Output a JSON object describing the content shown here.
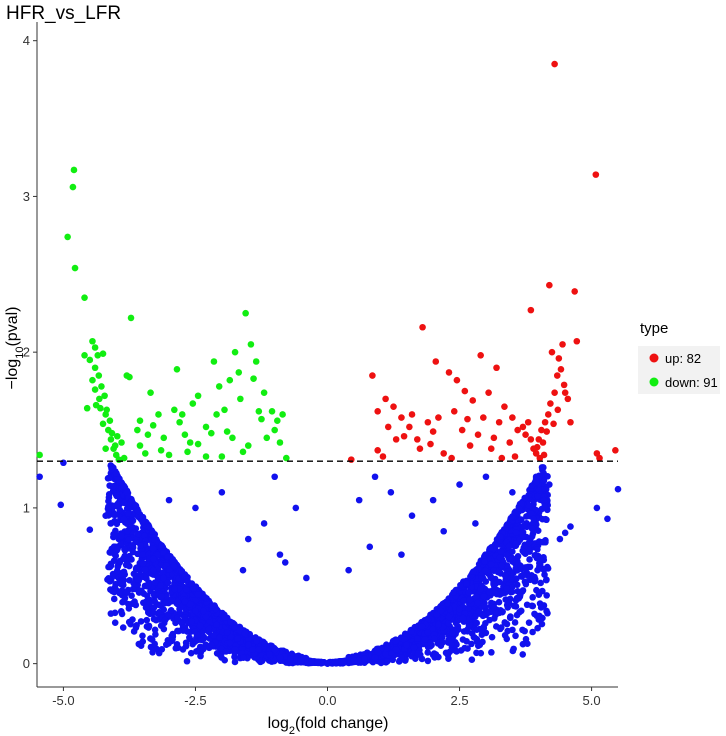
{
  "chart_data": {
    "type": "scatter",
    "title": "HFR_vs_LFR",
    "xlabel": "log2(fold change)",
    "ylabel": "-log10(pval)",
    "xlim": [
      -5.5,
      5.5
    ],
    "ylim": [
      -0.15,
      4.12
    ],
    "xticks": [
      -5.0,
      -2.5,
      0.0,
      2.5,
      5.0
    ],
    "xtick_labels": [
      "-5.0",
      "-2.5",
      "0.0",
      "2.5",
      "5.0"
    ],
    "yticks": [
      0,
      1,
      2,
      3,
      4
    ],
    "ytick_labels": [
      "0",
      "1",
      "2",
      "3",
      "4"
    ],
    "threshold_line": {
      "y": 1.3,
      "style": "dashed"
    },
    "grid": false,
    "legend": {
      "title": "type",
      "position": "right",
      "entries": [
        {
          "label": "up: 82",
          "color": "#ee1111"
        },
        {
          "label": "down: 91",
          "color": "#11ee11"
        }
      ]
    },
    "colors": {
      "up": "#ee1111",
      "down": "#11ee11",
      "ns": "#1111ee"
    },
    "series": [
      {
        "name": "up: 82",
        "color": "#ee1111",
        "points": [
          [
            4.3,
            3.85
          ],
          [
            5.08,
            3.14
          ],
          [
            4.2,
            2.43
          ],
          [
            4.68,
            2.39
          ],
          [
            3.85,
            2.27
          ],
          [
            4.72,
            2.07
          ],
          [
            4.45,
            2.05
          ],
          [
            4.38,
            1.96
          ],
          [
            4.42,
            1.89
          ],
          [
            4.48,
            1.79
          ],
          [
            4.3,
            1.74
          ],
          [
            4.22,
            1.67
          ],
          [
            4.18,
            1.6
          ],
          [
            4.12,
            1.55
          ],
          [
            4.05,
            1.5
          ],
          [
            4.0,
            1.44
          ],
          [
            3.97,
            1.39
          ],
          [
            3.95,
            1.35
          ],
          [
            4.02,
            1.32
          ],
          [
            4.1,
            1.34
          ],
          [
            1.8,
            2.16
          ],
          [
            2.05,
            1.94
          ],
          [
            2.3,
            1.87
          ],
          [
            2.45,
            1.82
          ],
          [
            2.6,
            1.75
          ],
          [
            2.75,
            1.69
          ],
          [
            2.9,
            1.98
          ],
          [
            3.05,
            1.74
          ],
          [
            3.2,
            1.9
          ],
          [
            3.35,
            1.65
          ],
          [
            3.5,
            1.58
          ],
          [
            3.6,
            1.5
          ],
          [
            3.75,
            1.47
          ],
          [
            3.85,
            1.44
          ],
          [
            0.85,
            1.85
          ],
          [
            0.95,
            1.62
          ],
          [
            1.1,
            1.7
          ],
          [
            1.25,
            1.65
          ],
          [
            1.4,
            1.58
          ],
          [
            1.55,
            1.52
          ],
          [
            1.7,
            1.44
          ],
          [
            1.9,
            1.55
          ],
          [
            2.1,
            1.58
          ],
          [
            2.4,
            1.62
          ],
          [
            2.55,
            1.5
          ],
          [
            2.95,
            1.58
          ],
          [
            3.1,
            1.38
          ],
          [
            3.3,
            1.32
          ],
          [
            0.45,
            1.31
          ],
          [
            0.95,
            1.37
          ],
          [
            1.15,
            1.52
          ],
          [
            1.45,
            1.46
          ],
          [
            1.75,
            1.38
          ],
          [
            2.2,
            1.35
          ],
          [
            2.7,
            1.4
          ],
          [
            3.55,
            1.33
          ],
          [
            5.15,
            1.32
          ],
          [
            5.45,
            1.37
          ],
          [
            5.1,
            1.35
          ],
          [
            4.6,
            1.55
          ],
          [
            4.55,
            1.7
          ],
          [
            4.35,
            1.85
          ],
          [
            4.25,
            2.0
          ],
          [
            3.7,
            1.52
          ],
          [
            3.15,
            1.45
          ],
          [
            2.85,
            1.47
          ],
          [
            2.0,
            1.49
          ],
          [
            1.6,
            1.6
          ],
          [
            1.3,
            1.44
          ],
          [
            1.05,
            1.33
          ],
          [
            2.35,
            1.32
          ],
          [
            3.45,
            1.42
          ],
          [
            3.9,
            1.38
          ],
          [
            4.08,
            1.42
          ],
          [
            4.15,
            1.49
          ],
          [
            4.28,
            1.54
          ],
          [
            4.36,
            1.63
          ],
          [
            4.5,
            1.74
          ],
          [
            3.8,
            1.55
          ],
          [
            2.65,
            1.57
          ],
          [
            1.95,
            1.41
          ],
          [
            3.25,
            1.55
          ]
        ]
      },
      {
        "name": "down: 91",
        "color": "#11ee11",
        "points": [
          [
            -4.8,
            3.17
          ],
          [
            -4.82,
            3.06
          ],
          [
            -4.92,
            2.74
          ],
          [
            -4.78,
            2.54
          ],
          [
            -4.6,
            2.35
          ],
          [
            -4.45,
            2.07
          ],
          [
            -4.6,
            1.98
          ],
          [
            -4.4,
            2.03
          ],
          [
            -4.35,
            1.98
          ],
          [
            -4.25,
            1.99
          ],
          [
            -4.4,
            1.9
          ],
          [
            -4.33,
            1.85
          ],
          [
            -4.28,
            1.78
          ],
          [
            -4.4,
            1.76
          ],
          [
            -4.32,
            1.7
          ],
          [
            -4.3,
            1.64
          ],
          [
            -4.2,
            1.6
          ],
          [
            -4.25,
            1.54
          ],
          [
            -4.15,
            1.5
          ],
          [
            -4.1,
            1.44
          ],
          [
            -4.05,
            1.38
          ],
          [
            -4.0,
            1.34
          ],
          [
            -3.95,
            1.31
          ],
          [
            -4.2,
            1.38
          ],
          [
            -5.45,
            1.34
          ],
          [
            -3.72,
            2.22
          ],
          [
            -3.75,
            1.84
          ],
          [
            -3.55,
            1.56
          ],
          [
            -3.35,
            1.74
          ],
          [
            -3.3,
            1.53
          ],
          [
            -3.4,
            1.47
          ],
          [
            -3.15,
            1.37
          ],
          [
            -3.0,
            1.34
          ],
          [
            -2.85,
            1.89
          ],
          [
            -2.8,
            1.55
          ],
          [
            -2.7,
            1.47
          ],
          [
            -2.65,
            1.36
          ],
          [
            -2.55,
            1.67
          ],
          [
            -2.45,
            1.72
          ],
          [
            -2.3,
            1.52
          ],
          [
            -2.15,
            1.94
          ],
          [
            -2.1,
            1.6
          ],
          [
            -1.95,
            1.63
          ],
          [
            -1.85,
            1.82
          ],
          [
            -1.75,
            2.0
          ],
          [
            -1.68,
            1.87
          ],
          [
            -1.55,
            2.25
          ],
          [
            -1.45,
            2.05
          ],
          [
            -1.35,
            1.94
          ],
          [
            -1.3,
            1.62
          ],
          [
            -1.25,
            1.57
          ],
          [
            -1.15,
            1.45
          ],
          [
            -0.95,
            1.56
          ],
          [
            -0.85,
            1.6
          ],
          [
            -0.78,
            1.32
          ],
          [
            -1.05,
            1.62
          ],
          [
            -1.5,
            1.4
          ],
          [
            -1.9,
            1.49
          ],
          [
            -2.0,
            1.33
          ],
          [
            -2.45,
            1.41
          ],
          [
            -3.1,
            1.45
          ],
          [
            -3.55,
            1.4
          ],
          [
            -3.8,
            1.85
          ],
          [
            -4.45,
            1.82
          ],
          [
            -4.5,
            1.95
          ],
          [
            -4.55,
            1.64
          ],
          [
            -4.12,
            1.56
          ],
          [
            -4.08,
            1.48
          ],
          [
            -3.9,
            1.42
          ],
          [
            -3.85,
            1.32
          ],
          [
            -3.2,
            1.6
          ],
          [
            -2.9,
            1.63
          ],
          [
            -2.6,
            1.42
          ],
          [
            -2.3,
            1.33
          ],
          [
            -1.8,
            1.45
          ],
          [
            -1.65,
            1.7
          ],
          [
            -1.4,
            1.83
          ],
          [
            -1.2,
            1.74
          ],
          [
            -1.0,
            1.5
          ],
          [
            -0.9,
            1.42
          ],
          [
            -2.05,
            1.78
          ],
          [
            -2.75,
            1.6
          ],
          [
            -3.6,
            1.5
          ],
          [
            -4.38,
            1.66
          ],
          [
            -4.22,
            1.72
          ],
          [
            -4.18,
            1.63
          ],
          [
            -4.02,
            1.4
          ],
          [
            -3.98,
            1.46
          ],
          [
            -1.6,
            1.36
          ],
          [
            -2.2,
            1.48
          ],
          [
            -3.45,
            1.35
          ]
        ]
      },
      {
        "name": "",
        "color": "#1111ee",
        "points": [
          [
            -5.45,
            1.2
          ],
          [
            -5.0,
            1.29
          ],
          [
            -5.05,
            1.02
          ],
          [
            -4.5,
            0.86
          ],
          [
            -4.0,
            1.22
          ],
          [
            -3.8,
            1.1
          ],
          [
            -4.2,
            0.95
          ],
          [
            -4.1,
            0.9
          ],
          [
            -3.9,
            0.82
          ],
          [
            -3.7,
            0.76
          ],
          [
            -3.5,
            0.7
          ],
          [
            -3.3,
            0.6
          ],
          [
            -3.1,
            0.55
          ],
          [
            -2.9,
            0.48
          ],
          [
            -2.7,
            0.4
          ],
          [
            -2.5,
            0.34
          ],
          [
            -2.3,
            0.3
          ],
          [
            -2.1,
            0.25
          ],
          [
            -1.9,
            0.2
          ],
          [
            -1.7,
            0.16
          ],
          [
            -1.5,
            0.12
          ],
          [
            -1.3,
            0.09
          ],
          [
            -1.1,
            0.06
          ],
          [
            -0.9,
            0.04
          ],
          [
            -0.7,
            0.03
          ],
          [
            -0.5,
            0.02
          ],
          [
            -0.3,
            0.01
          ],
          [
            0.0,
            0.0
          ],
          [
            0.3,
            0.01
          ],
          [
            0.5,
            0.02
          ],
          [
            0.7,
            0.03
          ],
          [
            0.9,
            0.04
          ],
          [
            1.1,
            0.06
          ],
          [
            1.3,
            0.09
          ],
          [
            1.5,
            0.12
          ],
          [
            1.7,
            0.16
          ],
          [
            1.9,
            0.2
          ],
          [
            2.1,
            0.25
          ],
          [
            2.3,
            0.3
          ],
          [
            2.5,
            0.35
          ],
          [
            2.7,
            0.41
          ],
          [
            2.9,
            0.48
          ],
          [
            3.1,
            0.55
          ],
          [
            3.3,
            0.63
          ],
          [
            3.5,
            0.72
          ],
          [
            3.7,
            0.82
          ],
          [
            3.9,
            0.93
          ],
          [
            4.1,
            1.05
          ],
          [
            4.2,
            1.15
          ],
          [
            4.6,
            0.88
          ],
          [
            4.5,
            0.84
          ],
          [
            4.4,
            0.8
          ],
          [
            5.1,
            1.0
          ],
          [
            5.3,
            0.93
          ],
          [
            5.5,
            1.12
          ],
          [
            3.95,
            1.2
          ],
          [
            -1.5,
            0.8
          ],
          [
            -1.2,
            0.9
          ],
          [
            -0.9,
            0.7
          ],
          [
            -2.0,
            1.1
          ],
          [
            -2.5,
            1.0
          ],
          [
            -3.0,
            1.05
          ],
          [
            -1.0,
            1.2
          ],
          [
            -0.6,
            1.0
          ],
          [
            0.6,
            1.05
          ],
          [
            0.9,
            1.2
          ],
          [
            1.2,
            1.1
          ],
          [
            1.6,
            0.95
          ],
          [
            2.0,
            1.05
          ],
          [
            2.5,
            1.15
          ],
          [
            3.0,
            1.2
          ],
          [
            3.5,
            1.1
          ],
          [
            0.4,
            0.6
          ],
          [
            0.8,
            0.75
          ],
          [
            1.4,
            0.7
          ],
          [
            2.2,
            0.85
          ],
          [
            2.8,
            0.9
          ],
          [
            -0.4,
            0.55
          ],
          [
            -0.8,
            0.65
          ],
          [
            -1.6,
            0.6
          ]
        ]
      }
    ]
  }
}
